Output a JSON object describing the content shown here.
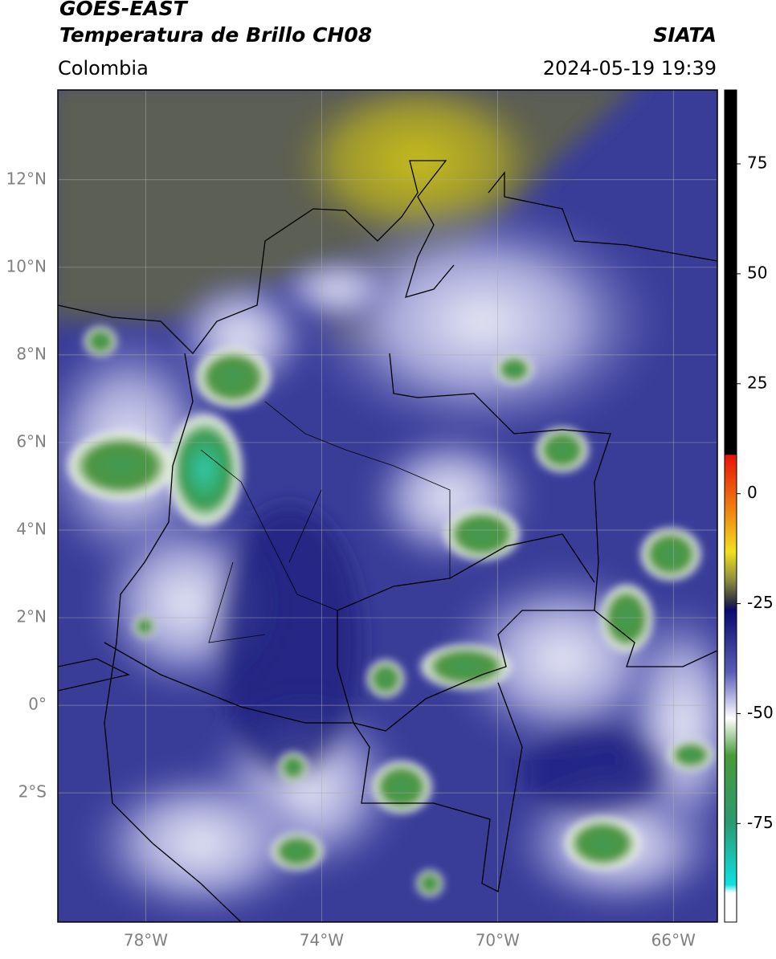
{
  "header": {
    "title_line1": "GOES-EAST",
    "title_line2": "Temperatura de Brillo CH08",
    "source": "SIATA",
    "region": "Colombia",
    "timestamp": "2024-05-19 19:39"
  },
  "map": {
    "xlim": [
      -80,
      -65
    ],
    "ylim": [
      -4.95,
      14.05
    ],
    "lat_ticks": [
      {
        "value": 12,
        "label": "12°N"
      },
      {
        "value": 10,
        "label": "10°N"
      },
      {
        "value": 8,
        "label": "8°N"
      },
      {
        "value": 6,
        "label": "6°N"
      },
      {
        "value": 4,
        "label": "4°N"
      },
      {
        "value": 2,
        "label": "2°N"
      },
      {
        "value": 0,
        "label": "0°"
      },
      {
        "value": -2,
        "label": "2°S"
      }
    ],
    "lon_ticks": [
      {
        "value": -78,
        "label": "78°W"
      },
      {
        "value": -74,
        "label": "74°W"
      },
      {
        "value": -70,
        "label": "70°W"
      },
      {
        "value": -66,
        "label": "66°W"
      }
    ]
  },
  "colorbar": {
    "lim": [
      -97.4,
      91.8
    ],
    "ticks": [
      75,
      50,
      25,
      0,
      -25,
      -50,
      -75
    ]
  }
}
